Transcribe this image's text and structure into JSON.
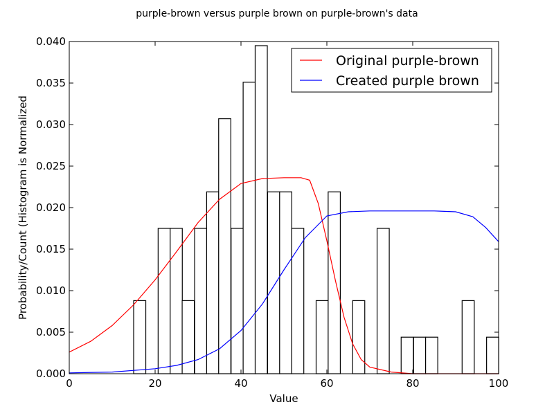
{
  "chart_data": {
    "type": "histogram+line",
    "title": "purple-brown versus purple brown on purple-brown's data",
    "xlabel": "Value",
    "ylabel": "Probability/Count (Histogram is Normalized",
    "xlim": [
      0,
      100
    ],
    "ylim": [
      0,
      0.04
    ],
    "xticks": [
      0,
      20,
      40,
      60,
      80,
      100
    ],
    "xtick_labels": [
      "0",
      "20",
      "40",
      "60",
      "80",
      "100"
    ],
    "yticks": [
      0,
      0.005,
      0.01,
      0.015,
      0.02,
      0.025,
      0.03,
      0.035,
      0.04
    ],
    "ytick_labels": [
      "0.000",
      "0.005",
      "0.010",
      "0.015",
      "0.020",
      "0.025",
      "0.030",
      "0.035",
      "0.040"
    ],
    "grid": false,
    "legend": "top-right",
    "histogram": {
      "bin_width": 2.83,
      "bins": [
        {
          "x0": 15.0,
          "value": 0.0088
        },
        {
          "x0": 20.7,
          "value": 0.0175
        },
        {
          "x0": 23.5,
          "value": 0.0175
        },
        {
          "x0": 26.3,
          "value": 0.0088
        },
        {
          "x0": 29.2,
          "value": 0.0175
        },
        {
          "x0": 32.0,
          "value": 0.0219
        },
        {
          "x0": 34.8,
          "value": 0.0307
        },
        {
          "x0": 37.7,
          "value": 0.0175
        },
        {
          "x0": 40.5,
          "value": 0.0351
        },
        {
          "x0": 43.3,
          "value": 0.0395
        },
        {
          "x0": 46.2,
          "value": 0.0219
        },
        {
          "x0": 49.0,
          "value": 0.0219
        },
        {
          "x0": 51.8,
          "value": 0.0175
        },
        {
          "x0": 57.5,
          "value": 0.0088
        },
        {
          "x0": 60.3,
          "value": 0.0219
        },
        {
          "x0": 66.0,
          "value": 0.0088
        },
        {
          "x0": 71.7,
          "value": 0.0175
        },
        {
          "x0": 77.3,
          "value": 0.0044
        },
        {
          "x0": 80.2,
          "value": 0.0044
        },
        {
          "x0": 83.0,
          "value": 0.0044
        },
        {
          "x0": 91.5,
          "value": 0.0088
        },
        {
          "x0": 97.2,
          "value": 0.0044
        }
      ]
    },
    "series": [
      {
        "name": "Original purple-brown",
        "color": "#ff0000",
        "x": [
          0,
          5,
          10,
          15,
          20,
          25,
          30,
          35,
          40,
          45,
          50,
          54,
          56,
          58,
          60,
          62,
          64,
          66,
          68,
          70,
          75,
          80,
          90,
          100
        ],
        "y": [
          0.0026,
          0.0039,
          0.0058,
          0.0083,
          0.0113,
          0.0147,
          0.0182,
          0.021,
          0.0229,
          0.0235,
          0.0236,
          0.0236,
          0.0233,
          0.0205,
          0.016,
          0.0112,
          0.0068,
          0.0036,
          0.0017,
          0.0008,
          0.0002,
          0.0,
          0.0,
          0.0
        ]
      },
      {
        "name": "Created purple brown",
        "color": "#0000ff",
        "x": [
          0,
          10,
          20,
          25,
          30,
          35,
          40,
          45,
          50,
          55,
          60,
          65,
          70,
          75,
          80,
          85,
          90,
          94,
          97,
          100
        ],
        "y": [
          0.0001,
          0.0002,
          0.0006,
          0.001,
          0.0017,
          0.003,
          0.0052,
          0.0084,
          0.0125,
          0.0164,
          0.019,
          0.0195,
          0.0196,
          0.0196,
          0.0196,
          0.0196,
          0.0195,
          0.0189,
          0.0176,
          0.0159
        ]
      }
    ]
  }
}
